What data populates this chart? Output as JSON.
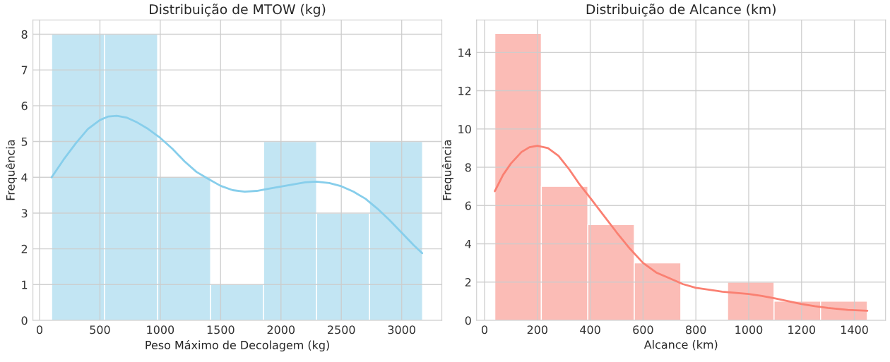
{
  "chart_data": [
    {
      "type": "histogram",
      "title": "Distribuição de MTOW (kg)",
      "xlabel": "Peso Máximo de Decolagem (kg)",
      "ylabel": "Frequência",
      "bins": [
        100,
        539,
        978,
        1417,
        1856,
        2295,
        2734,
        3173
      ],
      "values": [
        8,
        8,
        4,
        1,
        5,
        3,
        5
      ],
      "color": "#c2e5f3",
      "series": [
        {
          "type": "line",
          "color": "#87ceeb",
          "x": [
            100,
            200,
            300,
            400,
            500,
            570,
            640,
            720,
            800,
            900,
            1000,
            1100,
            1200,
            1300,
            1400,
            1500,
            1600,
            1700,
            1800,
            1900,
            2000,
            2100,
            2200,
            2290,
            2400,
            2500,
            2600,
            2700,
            2800,
            2900,
            3000,
            3100,
            3170
          ],
          "values": [
            4,
            4.5,
            4.95,
            5.35,
            5.6,
            5.7,
            5.72,
            5.67,
            5.55,
            5.35,
            5.1,
            4.8,
            4.45,
            4.15,
            3.95,
            3.76,
            3.64,
            3.6,
            3.62,
            3.68,
            3.74,
            3.8,
            3.86,
            3.88,
            3.84,
            3.75,
            3.6,
            3.4,
            3.12,
            2.8,
            2.45,
            2.1,
            1.88
          ]
        }
      ],
      "xlim": [
        -55,
        3333
      ],
      "xticks": [
        0,
        500,
        1000,
        1500,
        2000,
        2500,
        3000
      ],
      "ylim": [
        0,
        8.4
      ],
      "yticks": [
        0,
        1,
        2,
        3,
        4,
        5,
        6,
        7,
        8
      ],
      "grid": true,
      "line_style": "solid",
      "marker": "none"
    },
    {
      "type": "histogram",
      "title": "Distribuição de Alcance (km)",
      "xlabel": "Alcance (km)",
      "ylabel": "Frequência",
      "bins": [
        39,
        215,
        391,
        567,
        743,
        920,
        1096,
        1272,
        1449
      ],
      "values": [
        15,
        7,
        5,
        3,
        0,
        2,
        1,
        1
      ],
      "color": "#fbbcb6",
      "series": [
        {
          "type": "line",
          "color": "#fa8072",
          "x": [
            39,
            70,
            100,
            140,
            170,
            200,
            240,
            280,
            320,
            360,
            400,
            450,
            500,
            550,
            600,
            650,
            700,
            750,
            800,
            900,
            1000,
            1050,
            1100,
            1150,
            1200,
            1250,
            1300,
            1375,
            1449
          ],
          "values": [
            6.75,
            7.6,
            8.2,
            8.8,
            9.05,
            9.12,
            9.0,
            8.6,
            7.9,
            7.1,
            6.4,
            5.5,
            4.6,
            3.75,
            3.0,
            2.5,
            2.2,
            1.9,
            1.7,
            1.5,
            1.38,
            1.28,
            1.15,
            1.0,
            0.85,
            0.74,
            0.65,
            0.55,
            0.5
          ]
        }
      ],
      "xlim": [
        -30,
        1518
      ],
      "xticks": [
        0,
        200,
        400,
        600,
        800,
        1000,
        1200,
        1400
      ],
      "ylim": [
        0,
        15.7
      ],
      "yticks": [
        0,
        2,
        4,
        6,
        8,
        10,
        12,
        14
      ],
      "grid": true,
      "line_style": "solid",
      "marker": "none"
    }
  ]
}
